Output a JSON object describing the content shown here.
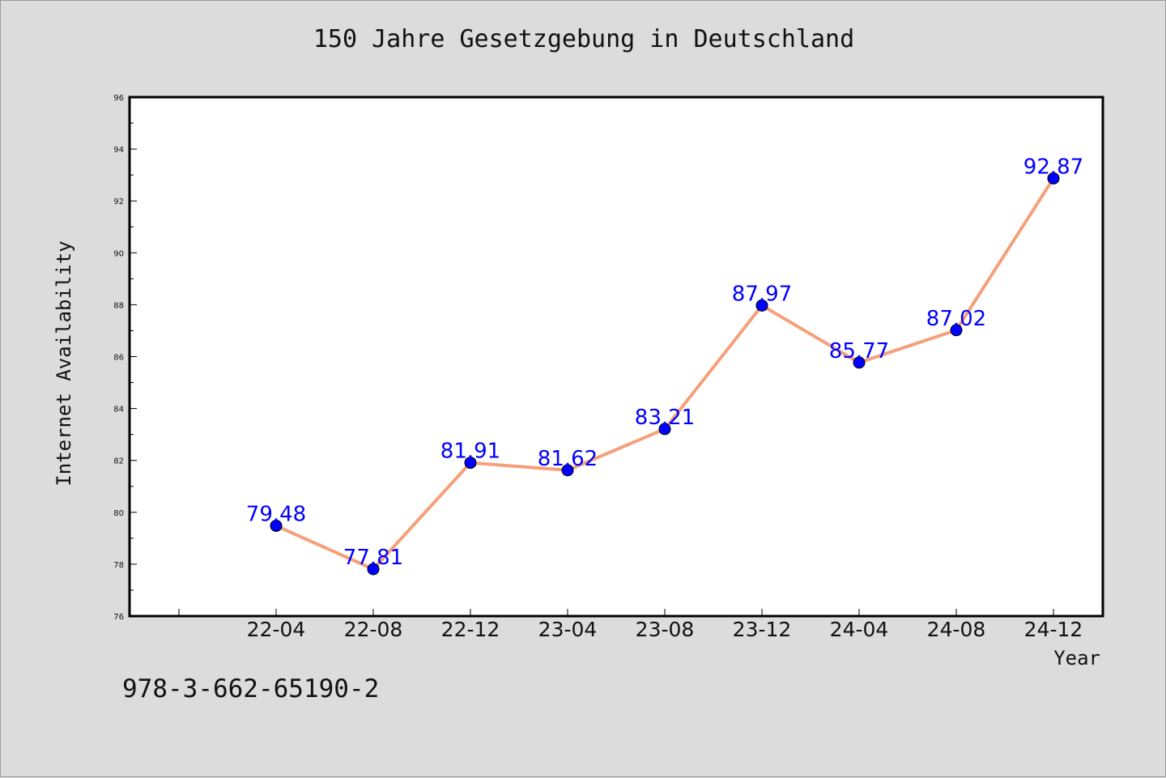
{
  "figure": {
    "title": "150 Jahre Gesetzgebung in Deutschland",
    "footer_text": "978-3-662-65190-2"
  },
  "chart_data": {
    "type": "line",
    "title": "150 Jahre Gesetzgebung in Deutschland",
    "xlabel": "Year",
    "ylabel": "Internet Availability",
    "categories": [
      "22-04",
      "22-08",
      "22-12",
      "23-04",
      "23-08",
      "23-12",
      "24-04",
      "24-08",
      "24-12"
    ],
    "series": [
      {
        "values": [
          79.48,
          77.81,
          81.91,
          81.62,
          83.21,
          87.97,
          85.77,
          87.02,
          92.87
        ]
      }
    ],
    "data_labels": [
      "79.48",
      "77.81",
      "81.91",
      "81.62",
      "83.21",
      "87.97",
      "85.77",
      "87.02",
      "92.87"
    ],
    "ylim": [
      76,
      96
    ],
    "yticks": [
      76,
      78,
      80,
      82,
      84,
      86,
      88,
      90,
      92,
      94,
      96
    ],
    "grid": false,
    "legend": "none",
    "colors": {
      "line": "#f4a07a",
      "marker": "#0000ff",
      "label": "#0000ff",
      "background": "#dcdcdc",
      "plot_background": "#ffffff"
    }
  }
}
